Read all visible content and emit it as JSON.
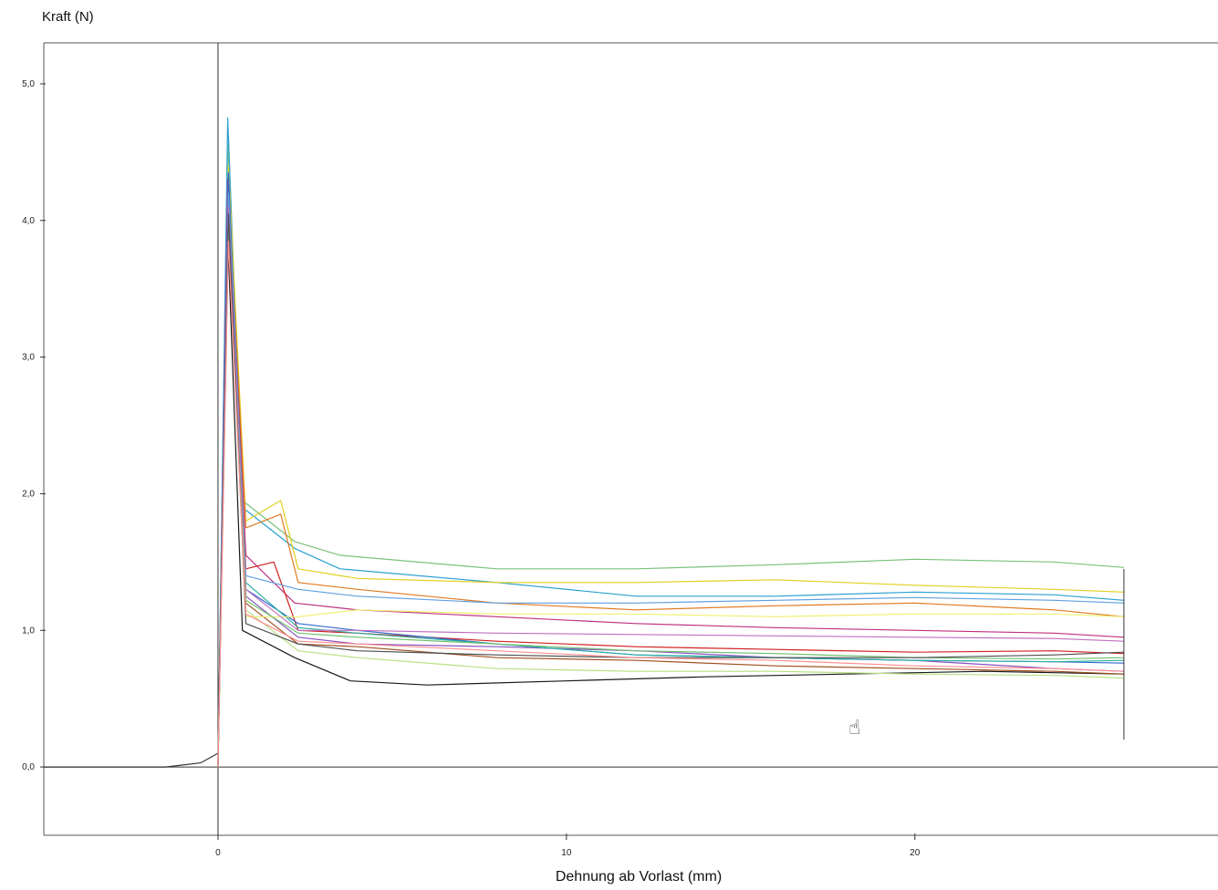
{
  "chart_data": {
    "type": "line",
    "ylabel": "Kraft (N)",
    "xlabel": "Dehnung ab Vorlast (mm)",
    "xlim": [
      -5,
      28.7
    ],
    "ylim": [
      -0.5,
      5.3
    ],
    "x_ticks": [
      0,
      10,
      20
    ],
    "x_tick_labels": [
      "0",
      "10",
      "20"
    ],
    "y_ticks": [
      0,
      1,
      2,
      3,
      4,
      5
    ],
    "y_tick_labels": [
      "0,0",
      "1,0",
      "2,0",
      "3,0",
      "4,0",
      "5,0"
    ],
    "grid": false,
    "legend": "none",
    "pre_curve": {
      "x": [
        -5,
        -2.2,
        -1.5,
        -0.5,
        0
      ],
      "y": [
        0,
        0,
        0,
        0.03,
        0.1
      ]
    },
    "series": [
      {
        "color": "#1a1a1a",
        "x": [
          0,
          0.25,
          0.7,
          2.2,
          3.8,
          6,
          10,
          14,
          18,
          22,
          26
        ],
        "y": [
          0,
          4.1,
          1.0,
          0.8,
          0.63,
          0.6,
          0.63,
          0.66,
          0.68,
          0.7,
          0.68
        ]
      },
      {
        "color": "#7ac27a",
        "x": [
          0,
          0.3,
          0.7,
          2.2,
          3.5,
          8,
          12,
          16,
          20,
          24,
          26
        ],
        "y": [
          0,
          4.6,
          1.95,
          1.65,
          1.55,
          1.45,
          1.45,
          1.48,
          1.52,
          1.5,
          1.46
        ]
      },
      {
        "color": "#2aa0d0",
        "x": [
          0,
          0.28,
          0.7,
          2.2,
          3.5,
          8,
          12,
          16,
          20,
          24,
          26
        ],
        "y": [
          0,
          4.75,
          1.9,
          1.6,
          1.45,
          1.35,
          1.25,
          1.25,
          1.28,
          1.26,
          1.22
        ]
      },
      {
        "color": "#e0d020",
        "x": [
          0,
          0.3,
          0.8,
          1.8,
          2.3,
          4,
          8,
          12,
          16,
          20,
          24,
          26
        ],
        "y": [
          0,
          4.4,
          1.8,
          1.95,
          1.45,
          1.38,
          1.35,
          1.35,
          1.37,
          1.33,
          1.3,
          1.28
        ]
      },
      {
        "color": "#e07a20",
        "x": [
          0,
          0.3,
          0.8,
          1.8,
          2.3,
          4,
          8,
          12,
          16,
          20,
          24,
          26
        ],
        "y": [
          0,
          4.2,
          1.75,
          1.85,
          1.35,
          1.3,
          1.2,
          1.15,
          1.18,
          1.2,
          1.15,
          1.1
        ]
      },
      {
        "color": "#c03080",
        "x": [
          0,
          0.28,
          0.8,
          2.2,
          4,
          8,
          12,
          16,
          20,
          24,
          26
        ],
        "y": [
          0,
          4.3,
          1.55,
          1.2,
          1.15,
          1.1,
          1.05,
          1.02,
          1.0,
          0.98,
          0.95
        ]
      },
      {
        "color": "#d02020",
        "x": [
          0,
          0.3,
          0.8,
          1.6,
          2.3,
          4,
          8,
          12,
          16,
          20,
          24,
          26
        ],
        "y": [
          0,
          4.25,
          1.45,
          1.5,
          1.0,
          0.98,
          0.92,
          0.88,
          0.86,
          0.84,
          0.85,
          0.83
        ]
      },
      {
        "color": "#306ad0",
        "x": [
          0,
          0.3,
          0.8,
          2.3,
          4,
          8,
          12,
          16,
          20,
          24,
          26
        ],
        "y": [
          0,
          4.35,
          1.3,
          1.05,
          1.0,
          0.9,
          0.82,
          0.8,
          0.78,
          0.77,
          0.76
        ]
      },
      {
        "color": "#8a50c0",
        "x": [
          0,
          0.3,
          0.8,
          2.3,
          4,
          8,
          12,
          16,
          20,
          24,
          26
        ],
        "y": [
          0,
          4.05,
          1.25,
          0.95,
          0.9,
          0.88,
          0.85,
          0.8,
          0.78,
          0.72,
          0.7
        ]
      },
      {
        "color": "#2ab0a0",
        "x": [
          0,
          0.3,
          0.8,
          2.3,
          4,
          8,
          12,
          16,
          20,
          24,
          26
        ],
        "y": [
          0,
          4.15,
          1.35,
          1.02,
          0.98,
          0.9,
          0.82,
          0.8,
          0.78,
          0.77,
          0.78
        ]
      },
      {
        "color": "#a05020",
        "x": [
          0,
          0.3,
          0.8,
          2.3,
          4,
          8,
          12,
          16,
          20,
          24,
          26
        ],
        "y": [
          0,
          4.0,
          1.2,
          0.9,
          0.88,
          0.8,
          0.78,
          0.74,
          0.72,
          0.7,
          0.68
        ]
      },
      {
        "color": "#b8e080",
        "x": [
          0,
          0.3,
          0.8,
          2.3,
          4,
          8,
          12,
          16,
          20,
          24,
          26
        ],
        "y": [
          0,
          3.9,
          1.15,
          0.85,
          0.8,
          0.72,
          0.7,
          0.7,
          0.68,
          0.67,
          0.65
        ]
      },
      {
        "color": "#f0f070",
        "x": [
          0,
          0.3,
          0.8,
          2.3,
          4,
          8,
          12,
          16,
          20,
          24,
          26
        ],
        "y": [
          0,
          4.0,
          1.1,
          1.1,
          1.15,
          1.12,
          1.12,
          1.1,
          1.12,
          1.12,
          1.1
        ]
      },
      {
        "color": "#60a0e0",
        "x": [
          0,
          0.3,
          0.8,
          2.3,
          4,
          8,
          12,
          16,
          20,
          24,
          26
        ],
        "y": [
          0,
          4.2,
          1.4,
          1.3,
          1.25,
          1.2,
          1.2,
          1.22,
          1.24,
          1.22,
          1.2
        ]
      },
      {
        "color": "#c070c0",
        "x": [
          0,
          0.3,
          0.8,
          2.3,
          4,
          8,
          12,
          16,
          20,
          24,
          26
        ],
        "y": [
          0,
          4.1,
          1.3,
          1.0,
          1.0,
          0.98,
          0.97,
          0.96,
          0.95,
          0.94,
          0.92
        ]
      },
      {
        "color": "#70c070",
        "x": [
          0,
          0.3,
          0.8,
          2.3,
          4,
          8,
          12,
          16,
          20,
          24,
          26
        ],
        "y": [
          0,
          3.95,
          1.22,
          0.98,
          0.95,
          0.9,
          0.85,
          0.83,
          0.8,
          0.79,
          0.8
        ]
      },
      {
        "color": "#505050",
        "x": [
          0,
          0.3,
          0.8,
          2.3,
          4,
          8,
          12,
          16,
          20,
          24,
          26
        ],
        "y": [
          0,
          4.05,
          1.05,
          0.9,
          0.85,
          0.82,
          0.8,
          0.8,
          0.8,
          0.82,
          0.84
        ]
      },
      {
        "color": "#ff9090",
        "x": [
          0,
          0.3,
          0.8,
          2.3,
          4,
          8,
          12,
          16,
          20,
          24,
          26
        ],
        "y": [
          0,
          3.85,
          1.12,
          0.92,
          0.9,
          0.85,
          0.8,
          0.78,
          0.74,
          0.72,
          0.7
        ]
      }
    ]
  }
}
